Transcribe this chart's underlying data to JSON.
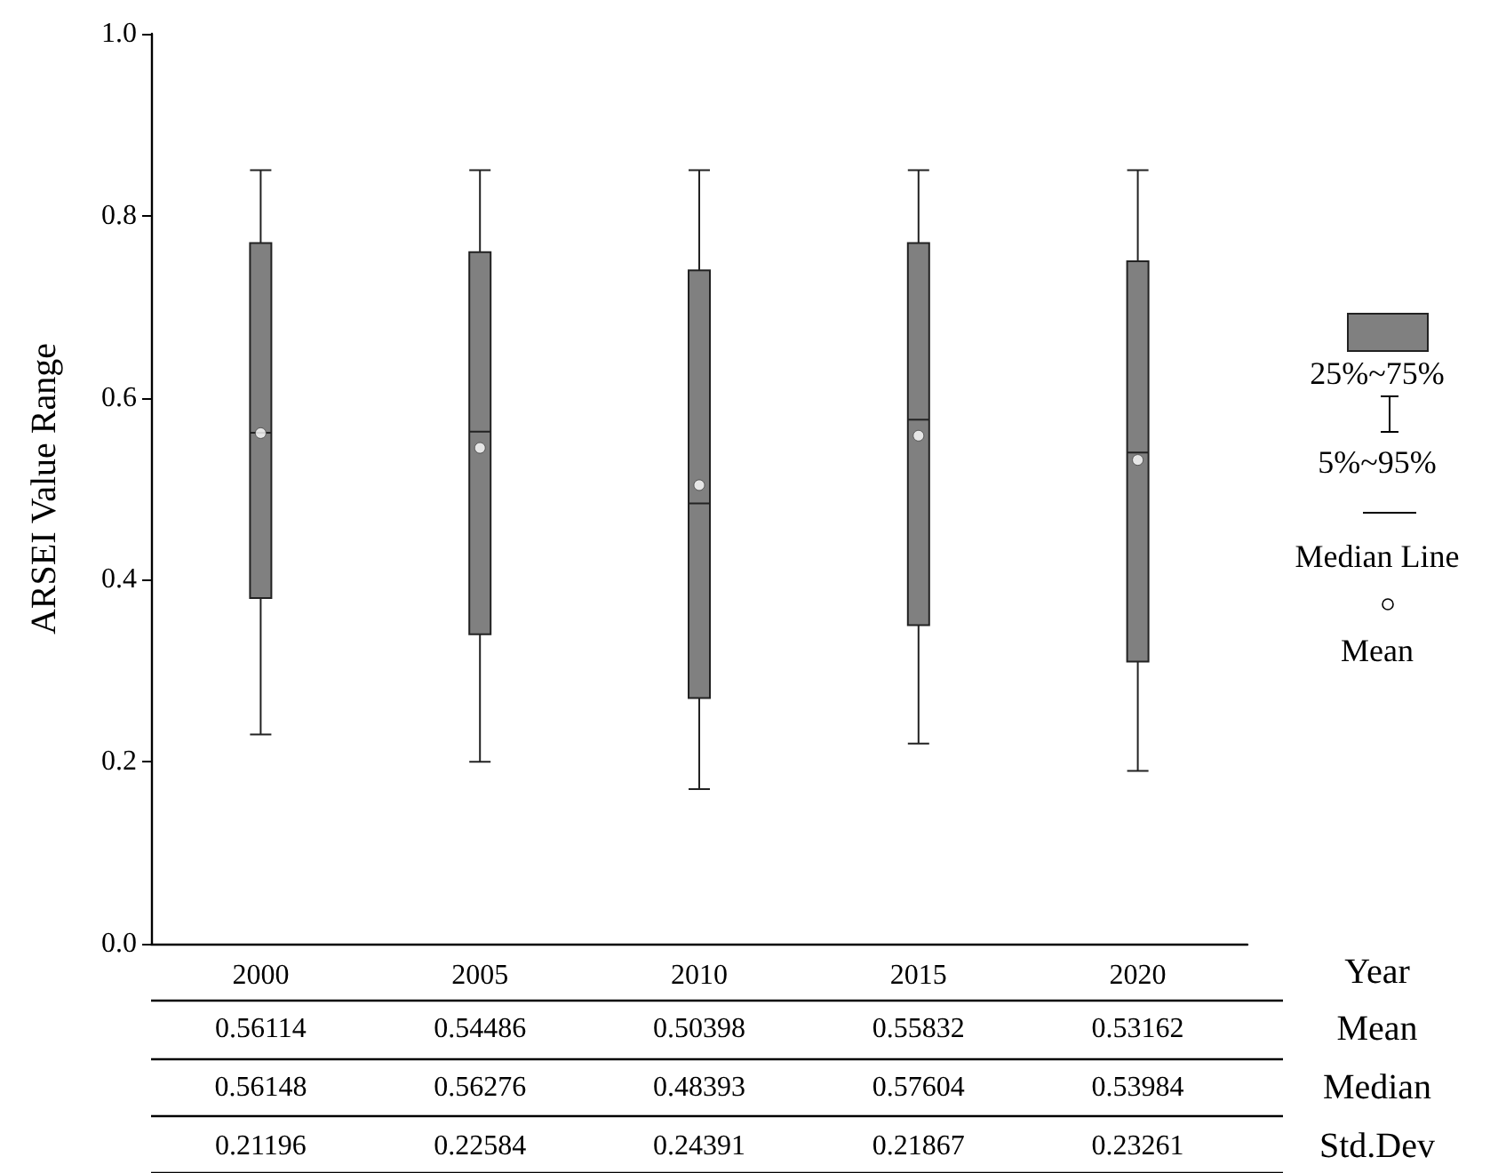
{
  "chart_data": {
    "type": "box",
    "ylabel": "ARSEI Value Range",
    "categories": [
      "2000",
      "2005",
      "2010",
      "2015",
      "2020"
    ],
    "ylim": [
      0,
      1
    ],
    "yticks": [
      {
        "value": 0,
        "label": "0.0"
      },
      {
        "value": 0.2,
        "label": "0.2"
      },
      {
        "value": 0.4,
        "label": "0.4"
      },
      {
        "value": 0.6,
        "label": "0.6"
      },
      {
        "value": 0.8,
        "label": "0.8"
      },
      {
        "value": 1,
        "label": "1.0"
      }
    ],
    "color": "#808080",
    "boxes": [
      {
        "low": 0.23,
        "q1": 0.38,
        "median": 0.56148,
        "q3": 0.77,
        "high": 0.85,
        "mean": 0.56114
      },
      {
        "low": 0.2,
        "q1": 0.34,
        "median": 0.56276,
        "q3": 0.76,
        "high": 0.85,
        "mean": 0.54486
      },
      {
        "low": 0.17,
        "q1": 0.27,
        "median": 0.48393,
        "q3": 0.74,
        "high": 0.85,
        "mean": 0.50398
      },
      {
        "low": 0.22,
        "q1": 0.35,
        "median": 0.57604,
        "q3": 0.77,
        "high": 0.85,
        "mean": 0.55832
      },
      {
        "low": 0.19,
        "q1": 0.31,
        "median": 0.53984,
        "q3": 0.75,
        "high": 0.85,
        "mean": 0.53162
      }
    ],
    "annotations": [
      "Year",
      "Mean",
      "Median",
      "Std.Dev",
      "0.56114",
      "0.54486",
      "0.50398",
      "0.55832",
      "0.53162",
      "0.56148",
      "0.56276",
      "0.48393",
      "0.57604",
      "0.53984",
      "0.21196",
      "0.22584",
      "0.24391",
      "0.21867",
      "0.23261",
      "25%~75%",
      "5%~95%",
      "Median Line",
      "Mean"
    ],
    "grid": false
  }
}
